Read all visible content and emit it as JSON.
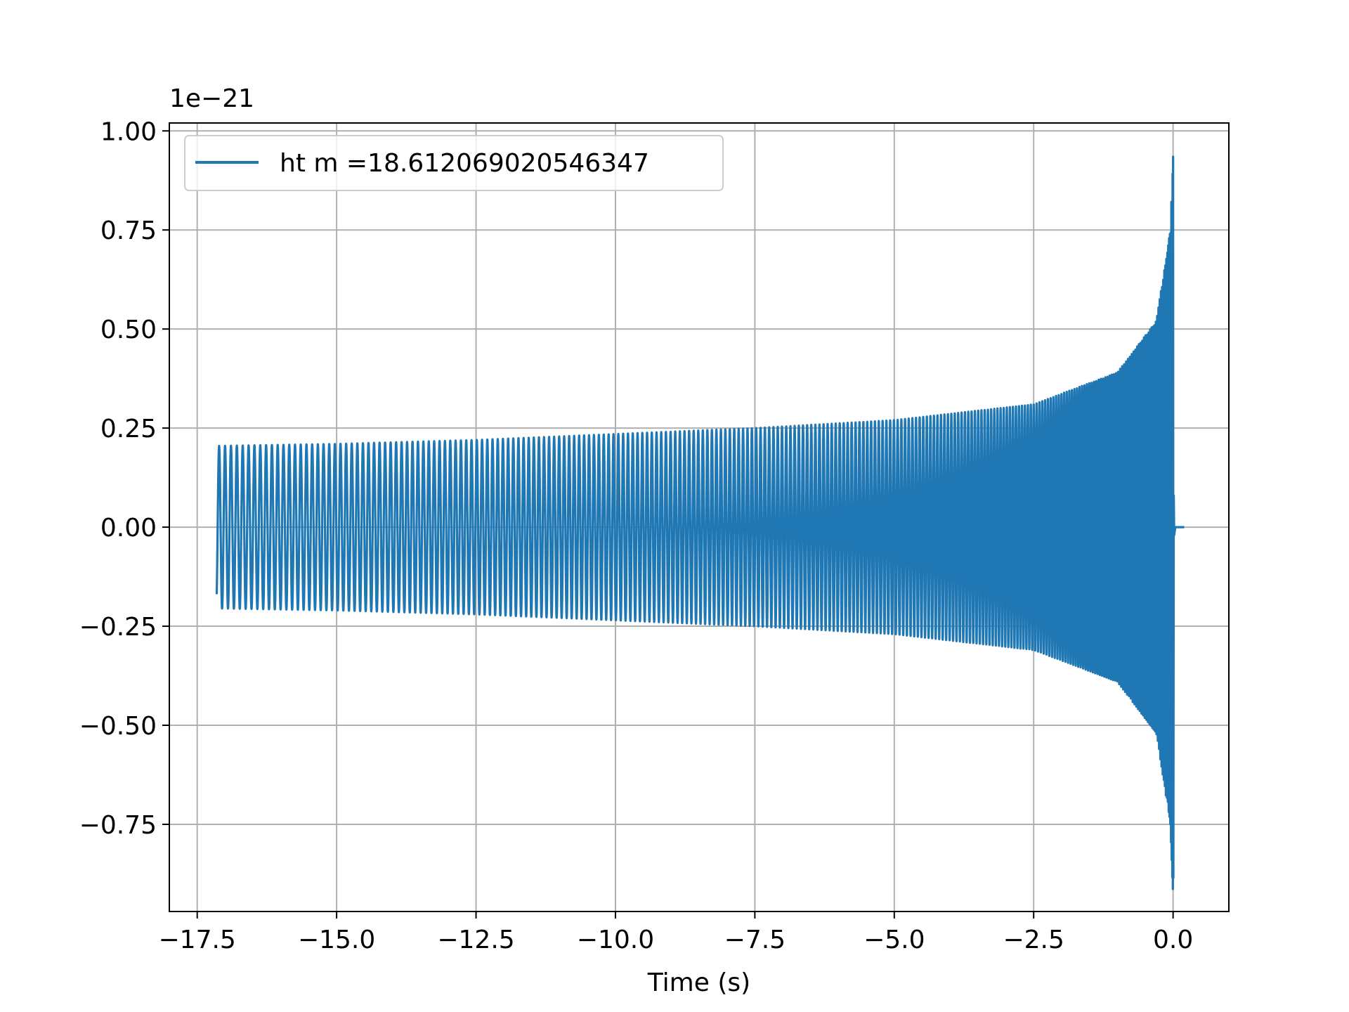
{
  "chart_data": {
    "type": "line",
    "title": "",
    "xlabel": "Time (s)",
    "ylabel": "",
    "y_offset_text": "1e−21",
    "y_scale_factor": 1e-21,
    "xlim": [
      -18.0,
      1.0
    ],
    "ylim": [
      -0.97,
      1.02
    ],
    "xticks": [
      -17.5,
      -15.0,
      -12.5,
      -10.0,
      -7.5,
      -5.0,
      -2.5,
      0.0
    ],
    "xtick_labels": [
      "−17.5",
      "−15.0",
      "−12.5",
      "−10.0",
      "−7.5",
      "−5.0",
      "−2.5",
      "0.0"
    ],
    "yticks": [
      -0.75,
      -0.5,
      -0.25,
      0.0,
      0.25,
      0.5,
      0.75,
      1.0
    ],
    "ytick_labels": [
      "−0.75",
      "−0.50",
      "−0.25",
      "0.00",
      "0.25",
      "0.50",
      "0.75",
      "1.00"
    ],
    "grid": true,
    "legend_position": "upper-left",
    "series": [
      {
        "name": "ht m =18.612069020546347",
        "color": "#1f77b4",
        "description_points": {
          "t_start": -17.15,
          "t_merger": 0.0,
          "t_end": 0.2,
          "amplitude_envelope": [
            {
              "t": -17.15,
              "a": 0.205
            },
            {
              "t": -15.0,
              "a": 0.21
            },
            {
              "t": -12.5,
              "a": 0.22
            },
            {
              "t": -10.0,
              "a": 0.235
            },
            {
              "t": -7.5,
              "a": 0.25
            },
            {
              "t": -5.0,
              "a": 0.27
            },
            {
              "t": -2.5,
              "a": 0.31
            },
            {
              "t": -1.0,
              "a": 0.39
            },
            {
              "t": -0.3,
              "a": 0.52
            },
            {
              "t": -0.05,
              "a": 0.75
            },
            {
              "t": 0.0,
              "a": 0.935
            }
          ],
          "min_value": -0.885,
          "max_value": 0.935
        }
      }
    ]
  }
}
